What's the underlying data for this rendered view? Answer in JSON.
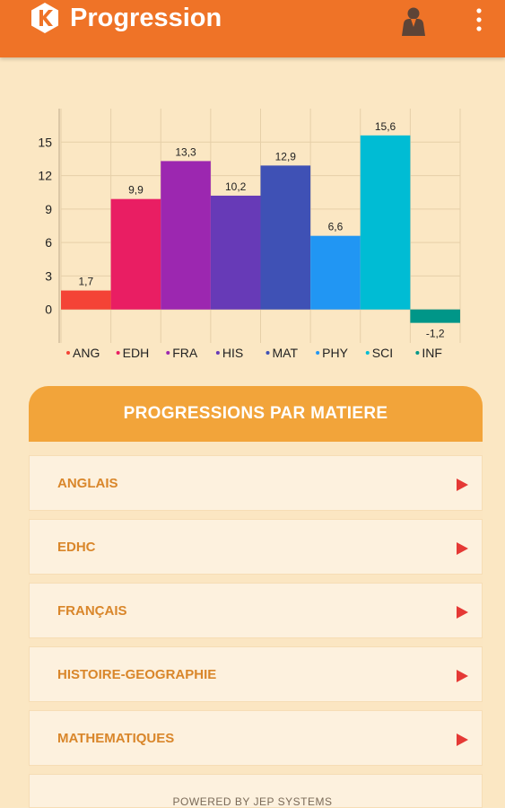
{
  "app": {
    "title": "Progression",
    "logo_icon": "k-logo-icon",
    "profile_icon": "person-icon",
    "menu_icon": "overflow-menu-icon",
    "primary_color": "#ef7327"
  },
  "chart_data": {
    "type": "bar",
    "categories": [
      "ANG",
      "EDH",
      "FRA",
      "HIS",
      "MAT",
      "PHY",
      "SCI",
      "INF"
    ],
    "values": [
      1.7,
      9.9,
      13.3,
      10.2,
      12.9,
      6.6,
      15.6,
      -1.2
    ],
    "value_labels": [
      "1,7",
      "9,9",
      "13,3",
      "10,2",
      "12,9",
      "6,6",
      "15,6",
      "-1,2"
    ],
    "colors": [
      "#f44336",
      "#e91e63",
      "#9c27b0",
      "#673ab7",
      "#3f51b5",
      "#2196f3",
      "#00bcd4",
      "#009688"
    ],
    "yticks": [
      0,
      3,
      6,
      9,
      12,
      15
    ],
    "ylim": [
      -3,
      18
    ],
    "grid": true,
    "legend": "bottom",
    "title": "",
    "xlabel": "",
    "ylabel": ""
  },
  "panel": {
    "header": "PROGRESSIONS PAR MATIERE",
    "header_color": "#f2a43a",
    "arrow_icon": "play-arrow-icon",
    "arrow_color": "#e53935",
    "items": [
      {
        "label": "ANGLAIS"
      },
      {
        "label": "EDHC"
      },
      {
        "label": "FRANÇAIS"
      },
      {
        "label": "HISTOIRE-GEOGRAPHIE"
      },
      {
        "label": "MATHEMATIQUES"
      },
      {
        "label": ""
      }
    ]
  },
  "footer": {
    "text": "POWERED BY  JEP SYSTEMS"
  }
}
